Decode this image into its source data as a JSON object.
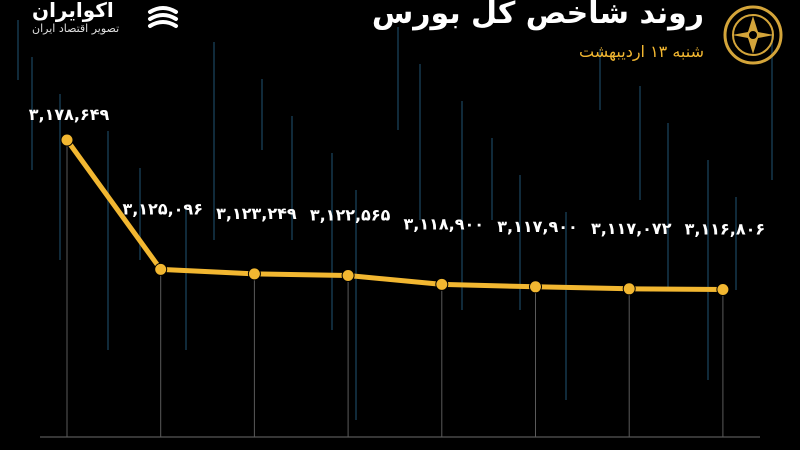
{
  "header": {
    "brand_name": "اکوایران",
    "brand_tagline": "تصویر اقتصاد ایران",
    "title": "روند شاخص کل بورس",
    "subtitle": "شنبه ۱۳ اردیبهشت",
    "brand_icon": "akoiran-logo-icon",
    "emblem_icon": "tehran-stock-exchange-emblem-icon"
  },
  "colors": {
    "background": "#000000",
    "line": "#f2b731",
    "text": "#ffffff",
    "accent": "#f2b731"
  },
  "chart_data": {
    "type": "line",
    "title": "روند شاخص کل بورس",
    "subtitle": "شنبه ۱۳ اردیبهشت",
    "xlabel": "",
    "ylabel": "",
    "grid": false,
    "legend": "none",
    "categories": [
      "",
      "",
      "",
      "",
      "",
      "",
      "",
      ""
    ],
    "values": [
      3178649,
      3125096,
      3123249,
      3122565,
      3118900,
      3117900,
      3117072,
      3116806
    ],
    "labels": [
      "۳,۱۷۸,۶۴۹",
      "۳,۱۲۵,۰۹۶",
      "۳,۱۲۳,۲۴۹",
      "۳,۱۲۲,۵۶۵",
      "۳,۱۱۸,۹۰۰",
      "۳,۱۱۷,۹۰۰",
      "۳,۱۱۷,۰۷۲",
      "۳,۱۱۶,۸۰۶"
    ],
    "ylim": [
      3070000,
      3190000
    ]
  }
}
